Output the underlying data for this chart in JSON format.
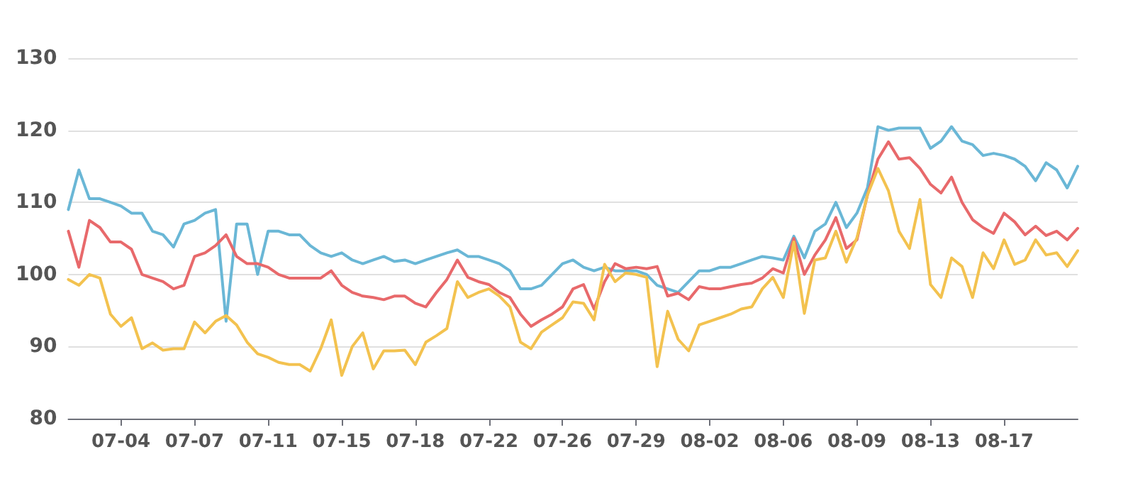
{
  "chart_data": {
    "type": "line",
    "categories": [
      null,
      null,
      null,
      null,
      null,
      "07-04",
      null,
      null,
      null,
      null,
      null,
      null,
      "07-07",
      null,
      null,
      null,
      null,
      null,
      null,
      "07-11",
      null,
      null,
      null,
      null,
      null,
      null,
      "07-15",
      null,
      null,
      null,
      null,
      null,
      null,
      "07-18",
      null,
      null,
      null,
      null,
      null,
      null,
      "07-22",
      null,
      null,
      null,
      null,
      null,
      null,
      "07-26",
      null,
      null,
      null,
      null,
      null,
      null,
      "07-29",
      null,
      null,
      null,
      null,
      null,
      null,
      "08-02",
      null,
      null,
      null,
      null,
      null,
      null,
      "08-06",
      null,
      null,
      null,
      null,
      null,
      null,
      "08-09",
      null,
      null,
      null,
      null,
      null,
      null,
      "08-13",
      null,
      null,
      null,
      null,
      null,
      null,
      "08-17",
      null,
      null,
      null,
      null,
      null,
      null,
      null
    ],
    "series": [
      {
        "color": "#6ab7d6",
        "values": [
          109,
          114.5,
          110.5,
          110.5,
          110,
          109.5,
          108.5,
          108.5,
          106,
          105.5,
          103.8,
          107,
          107.5,
          108.5,
          109,
          93.5,
          107,
          107,
          100,
          106,
          106,
          105.5,
          105.5,
          104,
          103,
          102.5,
          103,
          102,
          101.5,
          102,
          102.5,
          101.8,
          102,
          101.5,
          102,
          102.5,
          103,
          103.4,
          102.5,
          102.5,
          102,
          101.5,
          100.5,
          98,
          98,
          98.5,
          100,
          101.5,
          102,
          101,
          100.5,
          101,
          100.5,
          100.5,
          100.5,
          100,
          98.5,
          98,
          97.5,
          99,
          100.5,
          100.5,
          101,
          101,
          101.5,
          102,
          102.5,
          102.3,
          102,
          105.3,
          102.3,
          106,
          107,
          110,
          106.5,
          108.5,
          112,
          120.5,
          120,
          120.3,
          120.3,
          120.3,
          117.5,
          118.5,
          120.5,
          118.5,
          118,
          116.5,
          116.8,
          116.5,
          116,
          115,
          113,
          115.5,
          114.5,
          112,
          115
        ]
      },
      {
        "color": "#e8696b",
        "values": [
          106,
          101,
          107.5,
          106.5,
          104.5,
          104.5,
          103.5,
          100,
          99.5,
          99,
          98,
          98.5,
          102.5,
          103,
          104,
          105.5,
          102.5,
          101.5,
          101.5,
          101,
          100,
          99.5,
          99.5,
          99.5,
          99.5,
          100.5,
          98.5,
          97.5,
          97,
          96.8,
          96.5,
          97,
          97,
          96,
          95.5,
          97.5,
          99.3,
          102,
          99.6,
          99,
          98.6,
          97.5,
          96.8,
          94.5,
          92.8,
          93.7,
          94.5,
          95.5,
          98,
          98.6,
          95.2,
          99,
          101.5,
          100.8,
          101,
          100.8,
          101.1,
          97,
          97.4,
          96.5,
          98.3,
          98,
          98,
          98.3,
          98.6,
          98.8,
          99.5,
          100.8,
          100.2,
          105,
          100,
          102.7,
          104.8,
          107.9,
          103.6,
          104.8,
          111,
          116,
          118.4,
          116,
          116.2,
          114.7,
          112.5,
          111.3,
          113.5,
          110,
          107.6,
          106.5,
          105.7,
          108.5,
          107.3,
          105.5,
          106.7,
          105.4,
          106,
          104.8,
          106.4
        ]
      },
      {
        "color": "#f3c24f",
        "values": [
          99.3,
          98.5,
          100,
          99.5,
          94.5,
          92.8,
          94,
          89.7,
          90.5,
          89.5,
          89.7,
          89.7,
          93.4,
          91.9,
          93.5,
          94.3,
          93,
          90.6,
          89,
          88.5,
          87.8,
          87.5,
          87.5,
          86.6,
          89.7,
          93.7,
          86,
          90,
          91.9,
          86.9,
          89.4,
          89.4,
          89.5,
          87.5,
          90.6,
          91.5,
          92.5,
          99,
          96.8,
          97.5,
          98,
          97,
          95.5,
          90.6,
          89.7,
          92,
          93,
          94,
          96.2,
          96,
          93.7,
          101.4,
          99,
          100.2,
          100,
          99.6,
          87.2,
          94.9,
          91,
          89.4,
          93,
          93.5,
          94,
          94.5,
          95.2,
          95.5,
          98,
          99.6,
          96.8,
          104.5,
          94.6,
          102,
          102.3,
          106,
          101.7,
          105.1,
          111,
          114.7,
          111.6,
          106,
          103.6,
          110.4,
          98.6,
          96.8,
          102.3,
          101.1,
          96.8,
          103,
          100.8,
          104.8,
          101.4,
          102,
          104.8,
          102.7,
          103,
          101.1,
          103.3
        ]
      }
    ],
    "ylim": [
      80,
      130
    ],
    "yticks": [
      80,
      90,
      100,
      110,
      120,
      130
    ],
    "grid": "y",
    "marker": "none",
    "line_style": "solid"
  }
}
